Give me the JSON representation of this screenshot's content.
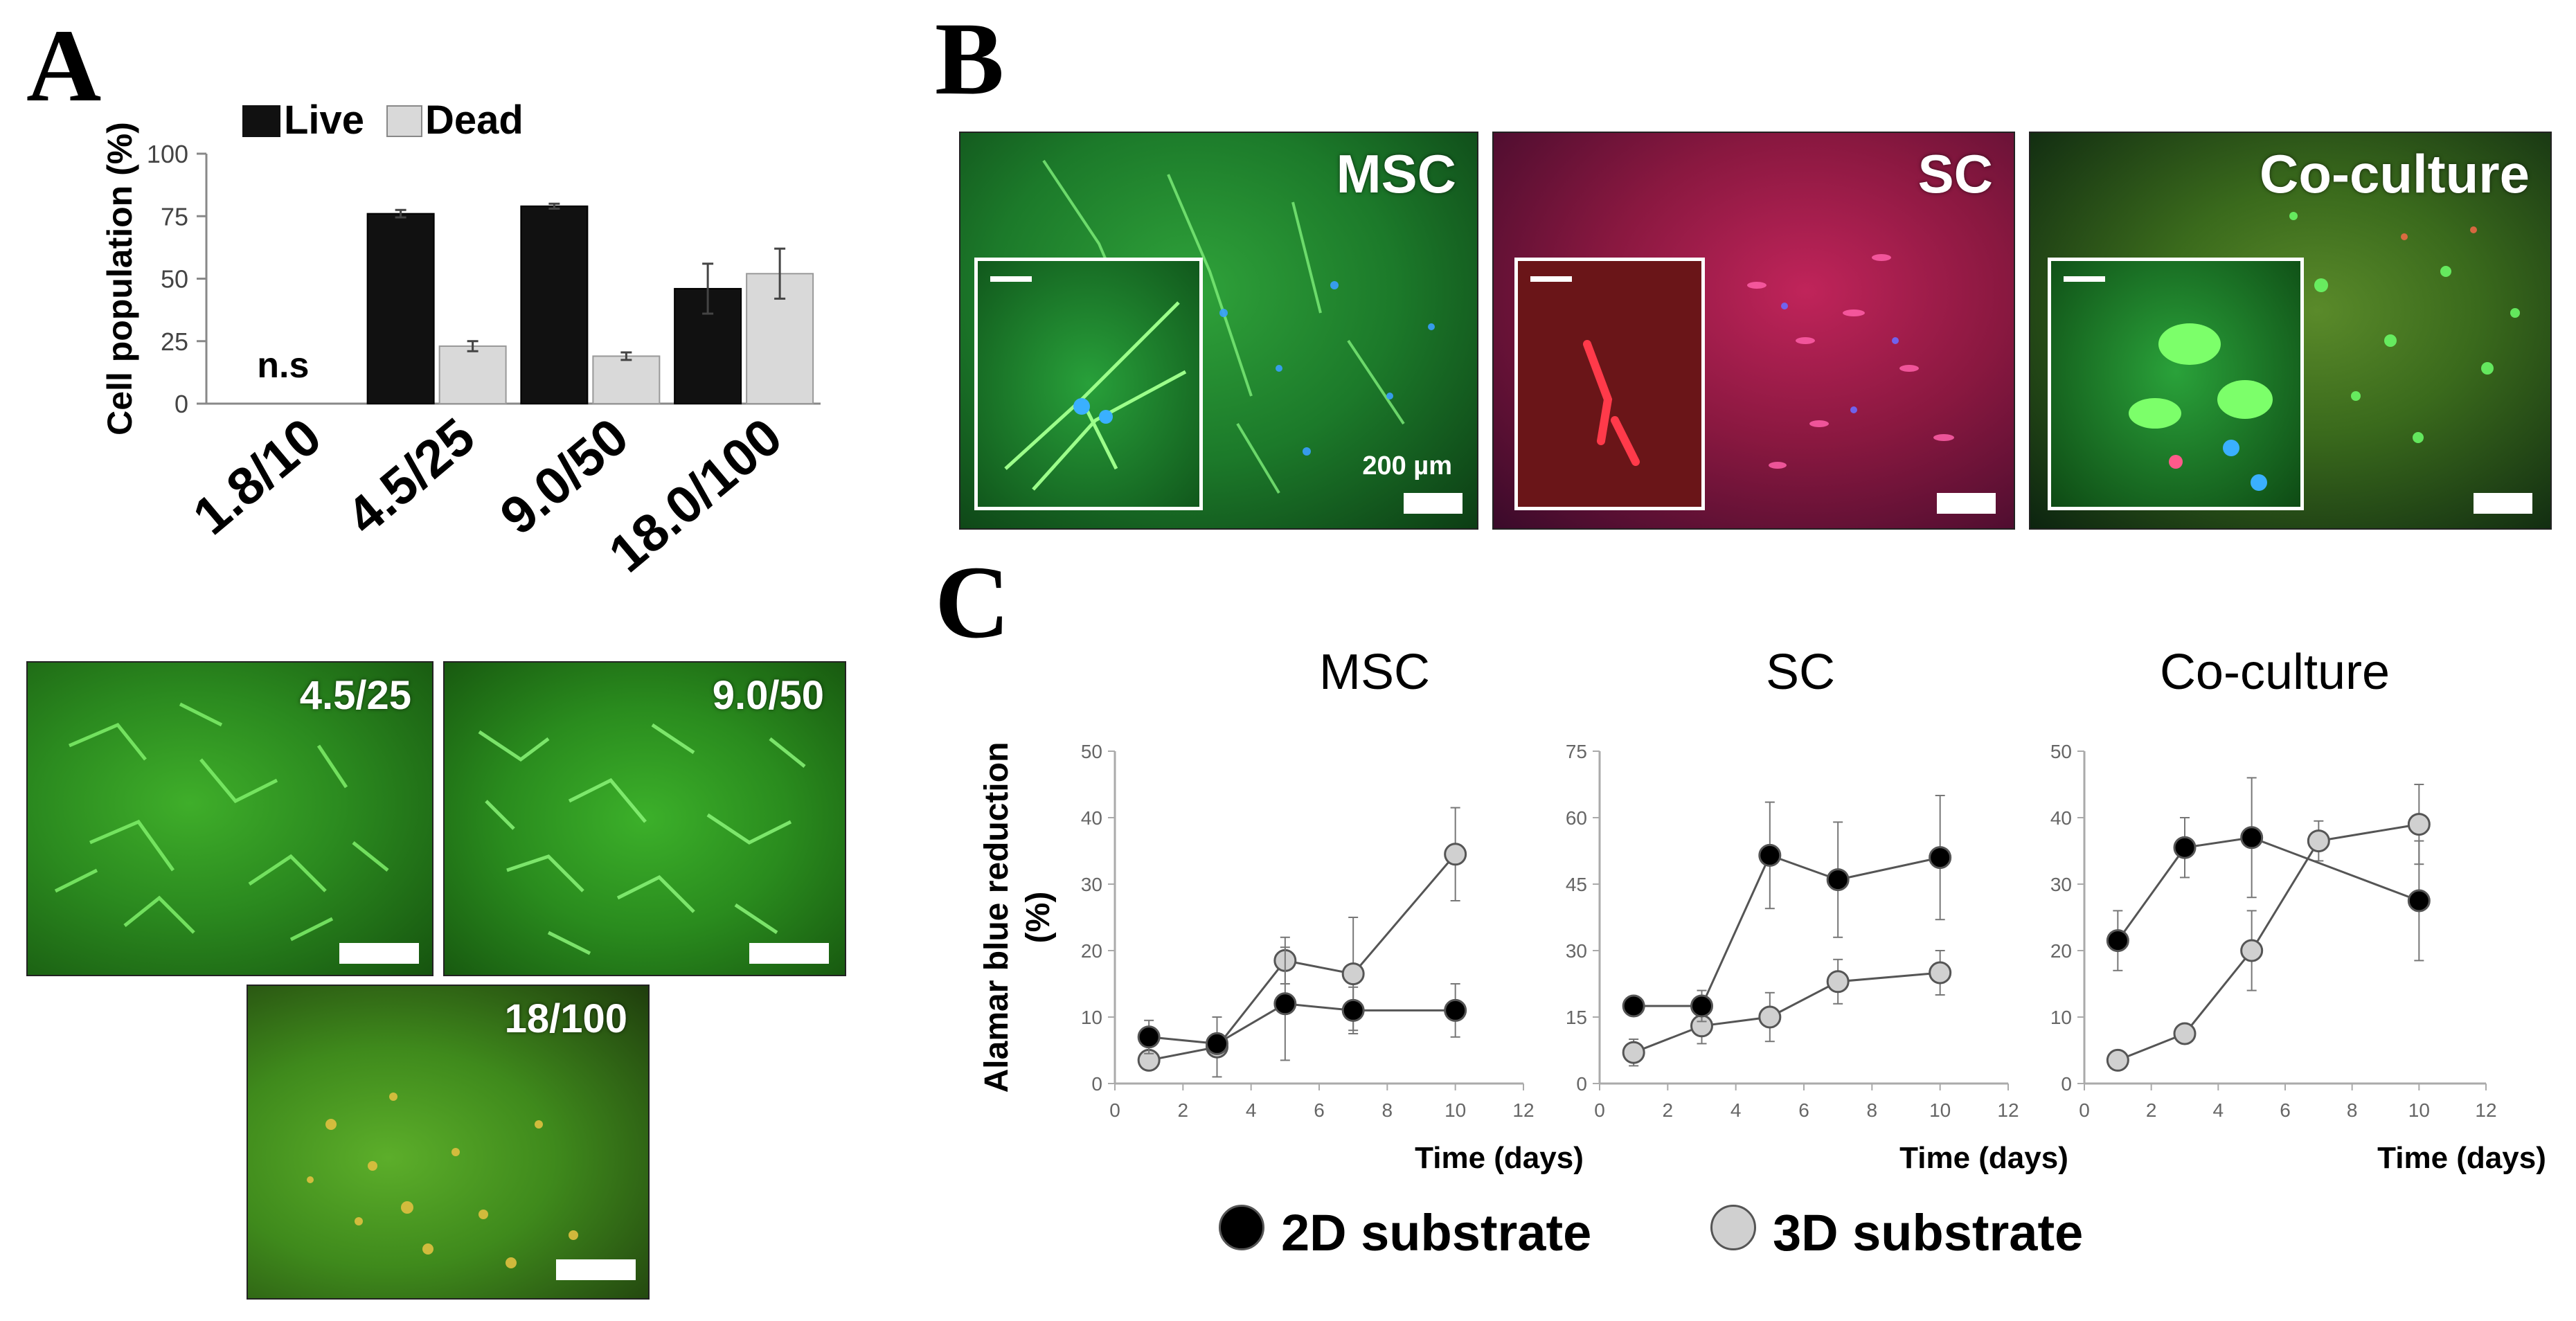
{
  "panels": {
    "a": "A",
    "b": "B",
    "c": "C"
  },
  "panel_a": {
    "legend": {
      "live": "Live",
      "dead": "Dead"
    },
    "ns_label": "n.s",
    "images": [
      {
        "label": "4.5/25"
      },
      {
        "label": "9.0/50"
      },
      {
        "label": "18/100"
      }
    ]
  },
  "panel_b": {
    "images": [
      {
        "label": "MSC",
        "scale_label": "200 µm"
      },
      {
        "label": "SC"
      },
      {
        "label": "Co-culture"
      }
    ]
  },
  "panel_c": {
    "legend": {
      "series_2d": "2D substrate",
      "series_3d": "3D substrate"
    }
  },
  "colors": {
    "live": "#111111",
    "dead": "#d9d9d9",
    "series_2d": "#000000",
    "series_3d": "#d0d0d0"
  },
  "chart_data": [
    {
      "type": "bar",
      "title": "",
      "xlabel": "",
      "ylabel": "Cell population (%)",
      "categories": [
        "1.8/10",
        "4.5/25",
        "9.0/50",
        "18.0/100"
      ],
      "series": [
        {
          "name": "Live",
          "values": [
            null,
            76,
            79,
            46
          ],
          "errors": [
            null,
            1.5,
            1,
            10
          ]
        },
        {
          "name": "Dead",
          "values": [
            null,
            23,
            19,
            52
          ],
          "errors": [
            null,
            2,
            1.5,
            10
          ]
        }
      ],
      "yticks": [
        0,
        25,
        50,
        75,
        100
      ],
      "ylim": [
        0,
        100
      ],
      "annotation": "n.s",
      "legend_position": "top"
    },
    {
      "type": "line",
      "title": "MSC",
      "xlabel": "Time (days)",
      "ylabel": "Alamar blue reduction (%)",
      "x": [
        1,
        3,
        5,
        7,
        10
      ],
      "series": [
        {
          "name": "2D substrate",
          "values": [
            7,
            6,
            12,
            11,
            11
          ],
          "errors": [
            2.5,
            1.5,
            8.5,
            3.5,
            4
          ]
        },
        {
          "name": "3D substrate",
          "values": [
            3.5,
            5.5,
            18.5,
            16.5,
            34.5
          ],
          "errors": [
            1,
            4.5,
            3.5,
            8.5,
            7
          ]
        }
      ],
      "xticks": [
        0,
        2,
        4,
        6,
        8,
        10,
        12
      ],
      "yticks": [
        0,
        10,
        20,
        30,
        40,
        50
      ],
      "xlim": [
        0,
        12
      ],
      "ylim": [
        0,
        50
      ]
    },
    {
      "type": "line",
      "title": "SC",
      "xlabel": "Time (days)",
      "ylabel": "",
      "x": [
        1,
        3,
        5,
        7,
        10
      ],
      "series": [
        {
          "name": "2D substrate",
          "values": [
            17.5,
            17.5,
            51.5,
            46,
            51
          ],
          "errors": [
            1.5,
            3.5,
            12,
            13,
            14
          ]
        },
        {
          "name": "3D substrate",
          "values": [
            7,
            13,
            15,
            23,
            25
          ],
          "errors": [
            3,
            4,
            5.5,
            5,
            5
          ]
        }
      ],
      "xticks": [
        0,
        2,
        4,
        6,
        8,
        10,
        12
      ],
      "yticks": [
        0,
        15,
        30,
        45,
        60,
        75
      ],
      "xlim": [
        0,
        12
      ],
      "ylim": [
        0,
        75
      ]
    },
    {
      "type": "line",
      "title": "Co-culture",
      "xlabel": "Time (days)",
      "ylabel": "",
      "x": [
        1,
        3,
        5,
        7,
        10
      ],
      "series": [
        {
          "name": "2D substrate",
          "values": [
            21.5,
            35.5,
            37,
            null,
            27.5
          ],
          "errors": [
            4.5,
            4.5,
            9,
            null,
            9
          ]
        },
        {
          "name": "3D substrate",
          "values": [
            3.5,
            7.5,
            20,
            36.5,
            39
          ],
          "errors": [
            0.5,
            1,
            6,
            3,
            6
          ]
        }
      ],
      "xticks": [
        0,
        2,
        4,
        6,
        8,
        10,
        12
      ],
      "yticks": [
        0,
        10,
        20,
        30,
        40,
        50
      ],
      "xlim": [
        0,
        12
      ],
      "ylim": [
        0,
        50
      ]
    }
  ]
}
